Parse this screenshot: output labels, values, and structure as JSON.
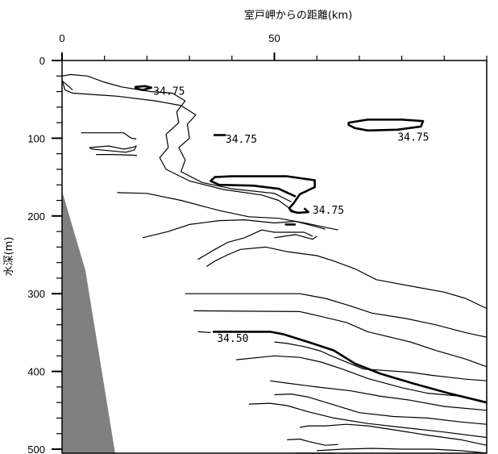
{
  "chart_data": {
    "type": "line",
    "title": "",
    "xlabel": "室戸岬からの距離(km)",
    "ylabel": "水深(m)",
    "xlim": [
      0,
      100
    ],
    "ylim": [
      0,
      500
    ],
    "x_major_ticks": [
      0,
      50
    ],
    "y_major_ticks": [
      0,
      100,
      200,
      300,
      400,
      500
    ],
    "x_tick_labels": [
      "0",
      "50"
    ],
    "y_tick_labels": [
      "0",
      "100",
      "200",
      "300",
      "400",
      "500"
    ],
    "grid": false,
    "legend": "none",
    "seabed": {
      "color": "#808080",
      "points": [
        [
          0,
          168
        ],
        [
          5.5,
          270
        ],
        [
          12.5,
          510
        ],
        [
          0,
          510
        ]
      ]
    },
    "contours": [
      {
        "level": 34.75,
        "bold": true,
        "label": "34.75",
        "label_pos": [
          21.5,
          44
        ],
        "closed": true,
        "points": [
          [
            17.3,
            34
          ],
          [
            19.5,
            33
          ],
          [
            21,
            35
          ],
          [
            19,
            38
          ],
          [
            17.3,
            36
          ]
        ]
      },
      {
        "level": 34.75,
        "bold": true,
        "label": "34.75",
        "label_pos": [
          38.5,
          106
        ],
        "closed": false,
        "points": [
          [
            35.7,
            96
          ],
          [
            38.6,
            96
          ]
        ]
      },
      {
        "level": 34.75,
        "bold": true,
        "label": "34.75",
        "label_pos": [
          79,
          103
        ],
        "closed": true,
        "points": [
          [
            67.5,
            80
          ],
          [
            72,
            76
          ],
          [
            80,
            76
          ],
          [
            85,
            78
          ],
          [
            84.5,
            85
          ],
          [
            79,
            89
          ],
          [
            72,
            90
          ],
          [
            69,
            87
          ],
          [
            67.5,
            83
          ]
        ]
      },
      {
        "level": 34.75,
        "bold": true,
        "label": "34.75",
        "label_pos": [
          59,
          197
        ],
        "closed": false,
        "points": [
          [
            57,
            190
          ],
          [
            58,
            195
          ],
          [
            55.5,
            196
          ],
          [
            54,
            194
          ],
          [
            53.5,
            190
          ],
          [
            54.5,
            184
          ],
          [
            56,
            172
          ],
          [
            59.5,
            163
          ],
          [
            59.5,
            154
          ],
          [
            53,
            149
          ],
          [
            40,
            149
          ],
          [
            36,
            150
          ],
          [
            35,
            155
          ],
          [
            37,
            160
          ],
          [
            45,
            161
          ],
          [
            51,
            165
          ],
          [
            55,
            175
          ]
        ]
      },
      {
        "level": 34.75,
        "bold": true,
        "label": "",
        "closed": false,
        "points": [
          [
            52.5,
            211
          ],
          [
            55,
            211
          ]
        ]
      },
      {
        "level": 34.5,
        "bold": true,
        "label": "34.50",
        "label_pos": [
          36.5,
          362
        ],
        "closed": false,
        "points": [
          [
            35.5,
            349
          ],
          [
            49,
            349
          ],
          [
            52,
            352
          ],
          [
            59,
            364
          ],
          [
            64,
            373
          ],
          [
            69,
            390
          ],
          [
            75,
            403
          ],
          [
            83,
            416
          ],
          [
            91,
            428
          ],
          [
            100,
            440
          ]
        ]
      },
      {
        "level": null,
        "bold": false,
        "label": "",
        "closed": false,
        "points": [
          [
            0,
            20
          ],
          [
            2,
            18
          ],
          [
            6,
            20
          ],
          [
            10,
            28
          ],
          [
            14,
            34
          ],
          [
            21,
            40
          ],
          [
            26,
            42
          ],
          [
            29,
            52
          ],
          [
            27,
            66
          ],
          [
            27.5,
            80
          ],
          [
            24.5,
            95
          ],
          [
            25,
            112
          ],
          [
            23,
            125
          ],
          [
            24.5,
            140
          ],
          [
            30,
            155
          ],
          [
            38,
            166
          ],
          [
            47,
            173
          ],
          [
            51,
            180
          ],
          [
            55,
            196
          ]
        ]
      },
      {
        "level": null,
        "bold": false,
        "label": "",
        "closed": false,
        "points": [
          [
            0,
            25
          ],
          [
            0.7,
            38
          ],
          [
            2.5,
            42
          ],
          [
            13,
            46
          ],
          [
            22,
            52
          ],
          [
            28,
            58
          ],
          [
            31.5,
            70
          ],
          [
            29.5,
            82
          ],
          [
            30,
            100
          ],
          [
            27.5,
            112
          ],
          [
            29,
            128
          ],
          [
            28,
            143
          ],
          [
            33,
            157
          ],
          [
            40,
            165
          ],
          [
            50,
            171
          ],
          [
            54,
            182
          ]
        ]
      },
      {
        "level": null,
        "bold": false,
        "label": "",
        "closed": false,
        "points": [
          [
            0,
            26
          ],
          [
            2.5,
            38
          ]
        ]
      },
      {
        "level": null,
        "bold": false,
        "label": "",
        "closed": false,
        "points": [
          [
            4.5,
            93
          ],
          [
            14.5,
            93
          ],
          [
            16.3,
            100
          ],
          [
            17.5,
            101
          ]
        ]
      },
      {
        "level": null,
        "bold": false,
        "label": "",
        "closed": true,
        "points": [
          [
            6.5,
            112
          ],
          [
            11,
            110
          ],
          [
            14.5,
            114
          ],
          [
            16.5,
            112
          ],
          [
            17.5,
            110
          ],
          [
            17,
            115
          ],
          [
            15,
            118
          ],
          [
            11,
            116
          ],
          [
            7,
            114
          ]
        ]
      },
      {
        "level": null,
        "bold": false,
        "label": "",
        "closed": false,
        "points": [
          [
            8,
            121
          ],
          [
            12,
            121
          ],
          [
            17.5,
            122
          ],
          [
            17.5,
            123
          ]
        ]
      },
      {
        "level": null,
        "bold": false,
        "label": "",
        "closed": false,
        "points": [
          [
            13,
            170
          ],
          [
            20,
            171
          ],
          [
            28,
            180
          ],
          [
            37,
            193
          ],
          [
            44,
            201
          ],
          [
            51,
            203
          ],
          [
            58,
            210
          ],
          [
            65,
            218
          ]
        ]
      },
      {
        "level": null,
        "bold": false,
        "label": "",
        "closed": false,
        "points": [
          [
            19,
            228
          ],
          [
            25,
            220
          ],
          [
            30,
            211
          ],
          [
            37,
            206
          ],
          [
            43,
            205
          ],
          [
            50,
            209
          ],
          [
            55,
            207
          ],
          [
            60,
            214
          ],
          [
            62,
            217
          ]
        ]
      },
      {
        "level": null,
        "bold": false,
        "label": "",
        "closed": false,
        "points": [
          [
            32,
            256
          ],
          [
            36,
            243
          ],
          [
            39,
            234
          ],
          [
            43,
            228
          ],
          [
            47,
            218
          ],
          [
            50,
            221
          ],
          [
            57,
            221
          ],
          [
            59,
            226
          ]
        ]
      },
      {
        "level": null,
        "bold": false,
        "label": "",
        "closed": false,
        "points": [
          [
            50,
            228
          ],
          [
            55,
            224
          ],
          [
            59,
            230
          ],
          [
            60,
            226
          ]
        ]
      },
      {
        "level": null,
        "bold": false,
        "label": "",
        "closed": false,
        "points": [
          [
            34,
            265
          ],
          [
            36,
            258
          ],
          [
            39,
            250
          ],
          [
            42,
            243
          ],
          [
            48,
            240
          ],
          [
            53,
            246
          ],
          [
            60,
            251
          ],
          [
            64,
            258
          ],
          [
            69,
            268
          ],
          [
            74,
            282
          ],
          [
            82,
            290
          ],
          [
            90,
            298
          ],
          [
            95,
            306
          ],
          [
            100,
            319
          ]
        ]
      },
      {
        "level": null,
        "bold": false,
        "label": "",
        "closed": false,
        "points": [
          [
            29,
            300
          ],
          [
            56,
            300
          ],
          [
            62,
            306
          ],
          [
            68,
            316
          ],
          [
            73,
            325
          ],
          [
            81,
            332
          ],
          [
            88,
            340
          ],
          [
            95,
            350
          ],
          [
            100,
            356
          ]
        ]
      },
      {
        "level": null,
        "bold": false,
        "label": "",
        "closed": false,
        "points": [
          [
            31,
            322
          ],
          [
            56,
            323
          ],
          [
            60,
            328
          ],
          [
            67,
            337
          ],
          [
            72,
            349
          ],
          [
            82,
            362
          ],
          [
            88,
            373
          ],
          [
            95,
            384
          ],
          [
            100,
            394
          ]
        ]
      },
      {
        "level": null,
        "bold": false,
        "label": "",
        "closed": false,
        "points": [
          [
            41,
            385
          ],
          [
            50,
            380
          ],
          [
            56,
            382
          ],
          [
            61,
            388
          ],
          [
            66,
            397
          ],
          [
            72,
            409
          ],
          [
            80,
            421
          ],
          [
            86,
            428
          ],
          [
            94,
            432
          ],
          [
            100,
            440
          ]
        ]
      },
      {
        "level": null,
        "bold": false,
        "label": "",
        "closed": false,
        "points": [
          [
            32,
            349
          ],
          [
            35,
            350
          ]
        ]
      },
      {
        "level": null,
        "bold": false,
        "label": "",
        "closed": false,
        "points": [
          [
            50,
            362
          ],
          [
            53,
            364
          ],
          [
            57,
            368
          ],
          [
            61,
            374
          ],
          [
            63,
            379
          ],
          [
            71,
            397
          ],
          [
            82,
            401
          ],
          [
            87,
            405
          ],
          [
            95,
            410
          ],
          [
            100,
            412
          ]
        ]
      },
      {
        "level": null,
        "bold": false,
        "label": "",
        "closed": false,
        "points": [
          [
            49,
            412
          ],
          [
            53,
            415
          ],
          [
            60,
            420
          ],
          [
            68,
            425
          ],
          [
            75,
            432
          ],
          [
            82,
            437
          ],
          [
            90,
            445
          ],
          [
            100,
            450
          ]
        ]
      },
      {
        "level": null,
        "bold": false,
        "label": "",
        "closed": false,
        "points": [
          [
            50,
            430
          ],
          [
            54,
            429
          ],
          [
            58,
            433
          ],
          [
            64,
            443
          ],
          [
            70,
            453
          ],
          [
            78,
            458
          ],
          [
            86,
            460
          ],
          [
            94,
            465
          ],
          [
            100,
            468
          ]
        ]
      },
      {
        "level": null,
        "bold": false,
        "label": "",
        "closed": false,
        "points": [
          [
            44,
            442
          ],
          [
            49,
            441
          ],
          [
            53,
            444
          ],
          [
            58,
            452
          ],
          [
            64,
            460
          ],
          [
            72,
            467
          ],
          [
            80,
            472
          ],
          [
            90,
            478
          ],
          [
            100,
            485
          ]
        ]
      },
      {
        "level": null,
        "bold": false,
        "label": "",
        "closed": false,
        "points": [
          [
            56,
            472
          ],
          [
            58,
            470
          ],
          [
            62,
            470
          ],
          [
            67,
            468
          ],
          [
            72,
            470
          ],
          [
            78,
            475
          ],
          [
            86,
            482
          ],
          [
            94,
            488
          ],
          [
            100,
            495
          ]
        ]
      },
      {
        "level": null,
        "bold": false,
        "label": "",
        "closed": false,
        "points": [
          [
            53,
            488
          ],
          [
            56,
            487
          ],
          [
            58,
            490
          ],
          [
            62,
            495
          ],
          [
            65,
            494
          ]
        ]
      },
      {
        "level": null,
        "bold": false,
        "label": "",
        "closed": false,
        "points": [
          [
            60,
            502
          ],
          [
            66,
            500
          ],
          [
            73,
            499
          ],
          [
            80,
            500
          ],
          [
            87,
            500
          ],
          [
            94,
            502
          ],
          [
            100,
            505
          ]
        ]
      },
      {
        "level": null,
        "bold": false,
        "label": "",
        "closed": false,
        "points": [
          [
            55,
            507
          ],
          [
            58,
            510
          ],
          [
            62,
            508
          ],
          [
            64,
            510
          ]
        ]
      }
    ]
  }
}
